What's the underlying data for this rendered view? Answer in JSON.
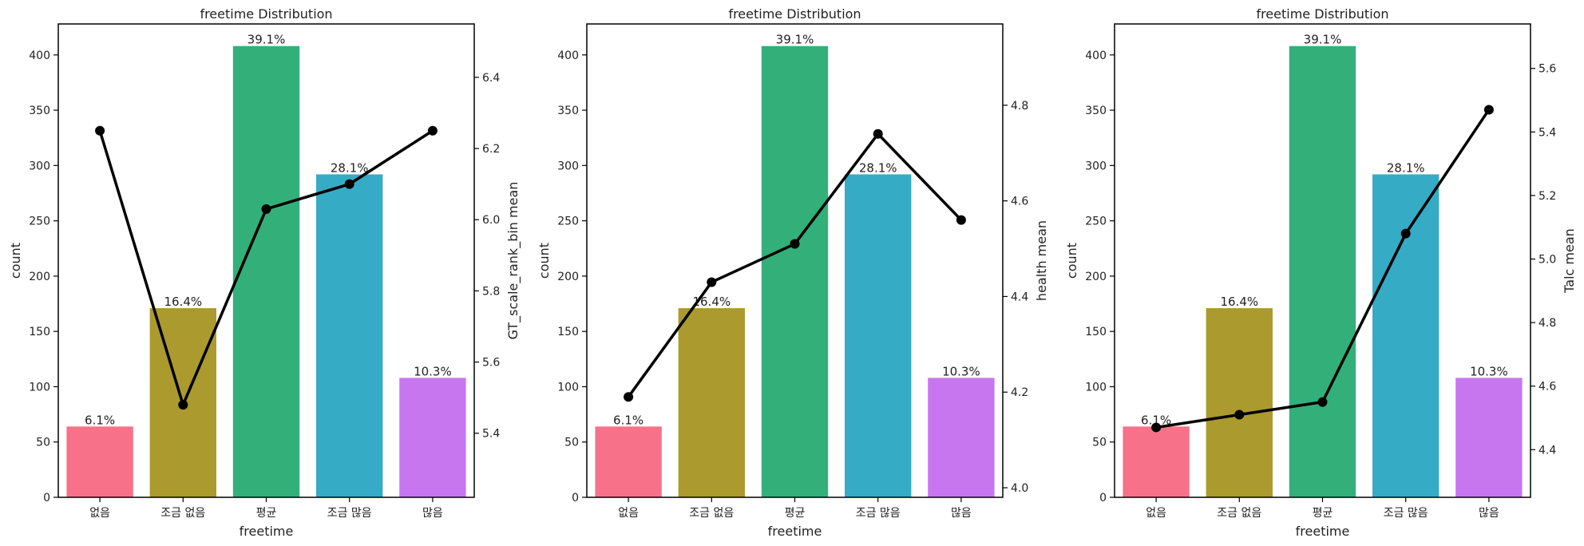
{
  "chart_data": [
    {
      "type": "bar",
      "title": "freetime Distribution",
      "xlabel": "freetime",
      "ylabel": "count",
      "y2label": "GT_scale_rank_bin mean",
      "categories": [
        "없음",
        "조금 없음",
        "평균",
        "조금 많음",
        "많음"
      ],
      "values": [
        64,
        171,
        408,
        292,
        108
      ],
      "percent_labels": [
        "6.1%",
        "16.4%",
        "39.1%",
        "28.1%",
        "10.3%"
      ],
      "bar_colors": [
        "#f77189",
        "#ab9a2d",
        "#33b07a",
        "#36abc6",
        "#c876f0"
      ],
      "ylim": [
        0,
        428
      ],
      "yticks": [
        0,
        50,
        100,
        150,
        200,
        250,
        300,
        350,
        400
      ],
      "line": {
        "values": [
          6.25,
          5.48,
          6.03,
          6.1,
          6.25
        ],
        "color": "#000000"
      },
      "y2lim": [
        5.22,
        6.55
      ],
      "y2ticks": [
        "5.4",
        "5.6",
        "5.8",
        "6.0",
        "6.2",
        "6.4"
      ]
    },
    {
      "type": "bar",
      "title": "freetime Distribution",
      "xlabel": "freetime",
      "ylabel": "count",
      "y2label": "health mean",
      "categories": [
        "없음",
        "조금 없음",
        "평균",
        "조금 많음",
        "많음"
      ],
      "values": [
        64,
        171,
        408,
        292,
        108
      ],
      "percent_labels": [
        "6.1%",
        "16.4%",
        "39.1%",
        "28.1%",
        "10.3%"
      ],
      "bar_colors": [
        "#f77189",
        "#ab9a2d",
        "#33b07a",
        "#36abc6",
        "#c876f0"
      ],
      "ylim": [
        0,
        428
      ],
      "yticks": [
        0,
        50,
        100,
        150,
        200,
        250,
        300,
        350,
        400
      ],
      "line": {
        "values": [
          4.19,
          4.43,
          4.51,
          4.74,
          4.56
        ],
        "color": "#000000"
      },
      "y2lim": [
        3.98,
        4.97
      ],
      "y2ticks": [
        "4.0",
        "4.2",
        "4.4",
        "4.6",
        "4.8"
      ]
    },
    {
      "type": "bar",
      "title": "freetime Distribution",
      "xlabel": "freetime",
      "ylabel": "count",
      "y2label": "Talc mean",
      "categories": [
        "없음",
        "조금 없음",
        "평균",
        "조금 많음",
        "많음"
      ],
      "values": [
        64,
        171,
        408,
        292,
        108
      ],
      "percent_labels": [
        "6.1%",
        "16.4%",
        "39.1%",
        "28.1%",
        "10.3%"
      ],
      "bar_colors": [
        "#f77189",
        "#ab9a2d",
        "#33b07a",
        "#36abc6",
        "#c876f0"
      ],
      "ylim": [
        0,
        428
      ],
      "yticks": [
        0,
        50,
        100,
        150,
        200,
        250,
        300,
        350,
        400
      ],
      "line": {
        "values": [
          4.47,
          4.51,
          4.55,
          5.08,
          5.47
        ],
        "color": "#000000"
      },
      "y2lim": [
        4.25,
        5.74
      ],
      "y2ticks": [
        "4.4",
        "4.6",
        "4.8",
        "5.0",
        "5.2",
        "5.4",
        "5.6"
      ]
    }
  ]
}
